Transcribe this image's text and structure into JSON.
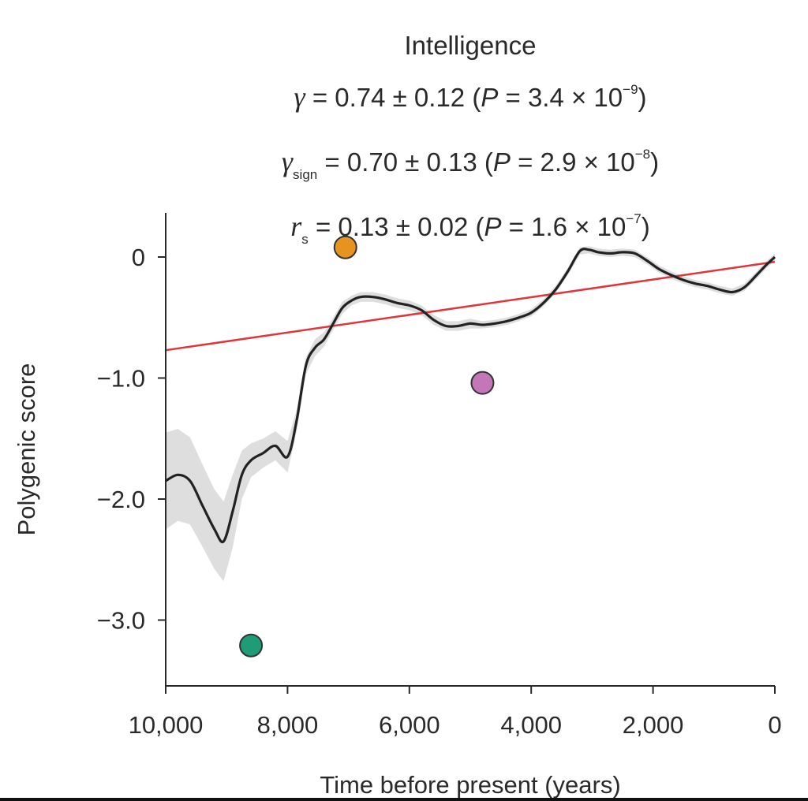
{
  "chart_data": {
    "type": "line",
    "title": "Intelligence",
    "stats": [
      {
        "symbol": "γ",
        "subscript": "",
        "text": "= 0.74 ± 0.12 (",
        "p_label": "P",
        "p_text": " = 3.4 × 10",
        "exponent": "−9",
        "close": ")"
      },
      {
        "symbol": "γ",
        "subscript": "sign",
        "text": "= 0.70 ± 0.13 (",
        "p_label": "P",
        "p_text": " = 2.9 × 10",
        "exponent": "−8",
        "close": ")"
      },
      {
        "symbol": "r",
        "subscript": "s",
        "text": "= 0.13 ± 0.02 (",
        "p_label": "P",
        "p_text": " = 1.6 × 10",
        "exponent": "−7",
        "close": ")"
      }
    ],
    "xlabel": "Time before present (years)",
    "ylabel": "Polygenic score",
    "xlim": [
      10000,
      0
    ],
    "ylim": [
      -3.5,
      0.35
    ],
    "x_ticks": [
      10000,
      8000,
      6000,
      4000,
      2000,
      0
    ],
    "x_tick_labels": [
      "10,000",
      "8,000",
      "6,000",
      "4,000",
      "2,000",
      "0"
    ],
    "y_ticks": [
      0,
      -1,
      -2,
      -3
    ],
    "y_tick_labels": [
      "0",
      "−1.0",
      "−2.0",
      "−3.0"
    ],
    "smooth_curve": {
      "color": "#222222",
      "x": [
        10000,
        9800,
        9600,
        9400,
        9200,
        9050,
        8900,
        8750,
        8600,
        8400,
        8200,
        8000,
        7850,
        7700,
        7550,
        7400,
        7250,
        7100,
        6950,
        6800,
        6600,
        6400,
        6200,
        6000,
        5800,
        5600,
        5400,
        5200,
        5000,
        4800,
        4600,
        4400,
        4200,
        4000,
        3800,
        3600,
        3400,
        3200,
        3050,
        2900,
        2700,
        2500,
        2300,
        2100,
        1900,
        1700,
        1500,
        1300,
        1100,
        900,
        700,
        500,
        300,
        150,
        0
      ],
      "y": [
        -1.85,
        -1.8,
        -1.85,
        -2.05,
        -2.25,
        -2.35,
        -2.1,
        -1.8,
        -1.68,
        -1.62,
        -1.56,
        -1.65,
        -1.35,
        -0.9,
        -0.75,
        -0.68,
        -0.55,
        -0.42,
        -0.36,
        -0.33,
        -0.33,
        -0.35,
        -0.38,
        -0.4,
        -0.44,
        -0.52,
        -0.57,
        -0.57,
        -0.55,
        -0.56,
        -0.55,
        -0.53,
        -0.5,
        -0.46,
        -0.38,
        -0.27,
        -0.12,
        0.05,
        0.06,
        0.04,
        0.03,
        0.04,
        0.03,
        -0.03,
        -0.1,
        -0.15,
        -0.19,
        -0.22,
        -0.24,
        -0.27,
        -0.29,
        -0.25,
        -0.15,
        -0.07,
        0.0
      ],
      "ci_halfwidth": [
        0.4,
        0.38,
        0.36,
        0.34,
        0.33,
        0.33,
        0.3,
        0.2,
        0.14,
        0.12,
        0.12,
        0.13,
        0.09,
        0.07,
        0.07,
        0.06,
        0.05,
        0.05,
        0.04,
        0.04,
        0.04,
        0.04,
        0.04,
        0.04,
        0.04,
        0.04,
        0.04,
        0.04,
        0.04,
        0.03,
        0.03,
        0.03,
        0.03,
        0.03,
        0.03,
        0.03,
        0.03,
        0.03,
        0.03,
        0.03,
        0.03,
        0.03,
        0.03,
        0.03,
        0.03,
        0.03,
        0.03,
        0.03,
        0.03,
        0.03,
        0.03,
        0.03,
        0.03,
        0.03,
        0.03
      ]
    },
    "trend_line": {
      "color": "#e0353b",
      "x": [
        10000,
        0
      ],
      "y": [
        -0.77,
        -0.04
      ]
    },
    "points": [
      {
        "x": 8600,
        "y": -3.21,
        "err": 0.09,
        "color": "#1f9c76"
      },
      {
        "x": 7050,
        "y": 0.08,
        "err": 0.03,
        "color": "#e8931f"
      },
      {
        "x": 4800,
        "y": -1.04,
        "err": 0.05,
        "color": "#c376b8"
      }
    ],
    "grid": false,
    "legend": "none"
  }
}
